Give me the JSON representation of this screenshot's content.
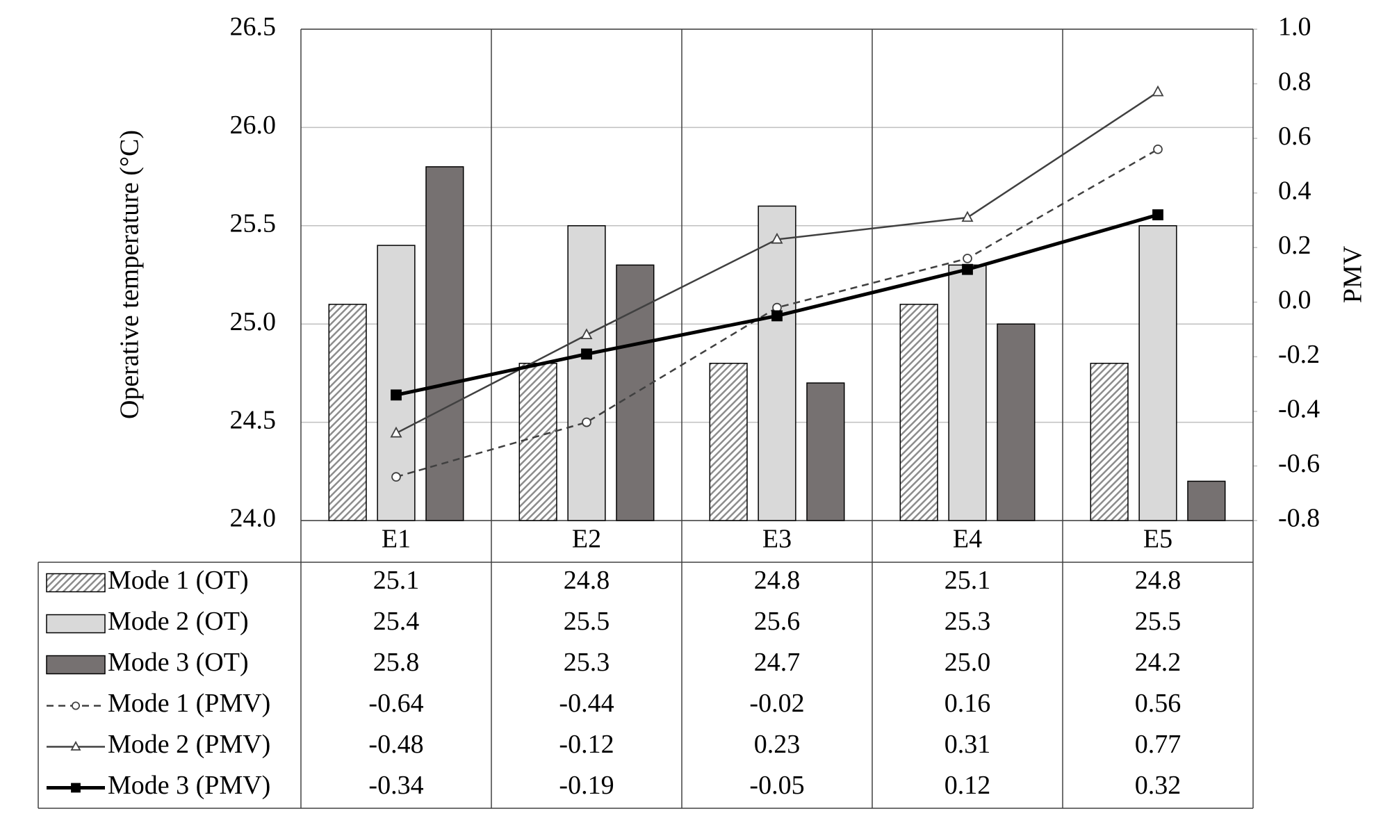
{
  "chart_data": {
    "type": "bar",
    "y_label": "Operative temperature (°C)",
    "y2_label": "PMV",
    "categories": [
      "E1",
      "E2",
      "E3",
      "E4",
      "E5"
    ],
    "ylim": [
      24,
      26.5
    ],
    "yticks": [
      {
        "value": 24,
        "label": "24.0"
      },
      24.5,
      {
        "value": 25,
        "label": "25.0"
      },
      25.5,
      {
        "value": 26,
        "label": "26.0"
      },
      26.5
    ],
    "y2lim": [
      -0.8,
      1
    ],
    "y2ticks": [
      -0.8,
      -0.6,
      -0.4,
      -0.2,
      {
        "value": 0,
        "label": "0.0"
      },
      0.2,
      0.4,
      0.6,
      0.8,
      {
        "value": 1,
        "label": "1.0"
      }
    ],
    "grid": true,
    "data_table": true,
    "series": [
      {
        "name": "Mode 1 (OT)",
        "type": "bar",
        "pattern": "hatch",
        "color": "#8c8c8c",
        "values": [
          25.1,
          24.8,
          24.8,
          25.1,
          24.8
        ]
      },
      {
        "name": "Mode 2 (OT)",
        "type": "bar",
        "color": "#d9d9d9",
        "values": [
          25.4,
          25.5,
          25.6,
          25.3,
          25.5
        ]
      },
      {
        "name": "Mode 3 (OT)",
        "type": "bar",
        "color": "#767171",
        "values": [
          25.8,
          25.3,
          24.7,
          25.0,
          24.2
        ],
        "value_labels": [
          "25.8",
          "25.3",
          "24.7",
          "25.0",
          "24.2"
        ]
      },
      {
        "name": "Mode 1 (PMV)",
        "type": "line",
        "axis": "y2",
        "color": "#404040",
        "dashed": true,
        "marker": "circle",
        "line_width": 2.5,
        "values": [
          -0.64,
          -0.44,
          -0.02,
          0.16,
          0.56
        ]
      },
      {
        "name": "Mode 2 (PMV)",
        "type": "line",
        "axis": "y2",
        "color": "#404040",
        "marker": "triangle",
        "line_width": 2.5,
        "values": [
          -0.48,
          -0.12,
          0.23,
          0.31,
          0.77
        ]
      },
      {
        "name": "Mode 3 (PMV)",
        "type": "line",
        "axis": "y2",
        "color": "#000000",
        "marker": "square",
        "line_width": 5,
        "values": [
          -0.34,
          -0.19,
          -0.05,
          0.12,
          0.32
        ]
      }
    ]
  }
}
